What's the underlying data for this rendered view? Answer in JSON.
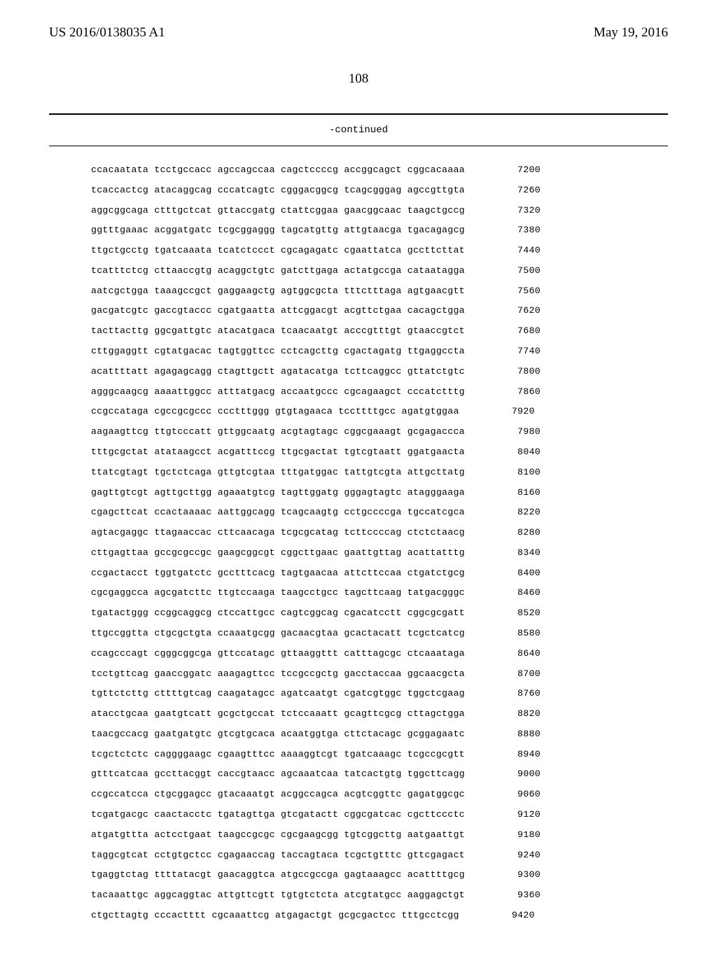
{
  "header": {
    "left": "US 2016/0138035 A1",
    "right": "May 19, 2016"
  },
  "page_number": "108",
  "continued_label": "-continued",
  "start_number": 7200,
  "step": 60,
  "sequence_rows": [
    "ccacaatata tcctgccacc agccagccaa cagctccccg accggcagct cggcacaaaa",
    "tcaccactcg atacaggcag cccatcagtc cgggacggcg tcagcgggag agccgttgta",
    "aggcggcaga ctttgctcat gttaccgatg ctattcggaa gaacggcaac taagctgccg",
    "ggtttgaaac acggatgatc tcgcggaggg tagcatgttg attgtaacga tgacagagcg",
    "ttgctgcctg tgatcaaata tcatctccct cgcagagatc cgaattatca gccttcttat",
    "tcatttctcg cttaaccgtg acaggctgtc gatcttgaga actatgccga cataatagga",
    "aatcgctgga taaagccgct gaggaagctg agtggcgcta tttctttaga agtgaacgtt",
    "gacgatcgtc gaccgtaccc cgatgaatta attcggacgt acgttctgaa cacagctgga",
    "tacttacttg ggcgattgtc atacatgaca tcaacaatgt acccgtttgt gtaaccgtct",
    "cttggaggtt cgtatgacac tagtggttcc cctcagcttg cgactagatg ttgaggccta",
    "acattttatt agagagcagg ctagttgctt agatacatga tcttcaggcc gttatctgtc",
    "agggcaagcg aaaattggcc atttatgacg accaatgccc cgcagaagct cccatctttg",
    "ccgccataga cgccgcgccc ccctttggg gtgtagaaca tccttttgcc agatgtggaa",
    "aagaagttcg ttgtcccatt gttggcaatg acgtagtagc cggcgaaagt gcgagaccca",
    "tttgcgctat atataagcct acgatttccg ttgcgactat tgtcgtaatt ggatgaacta",
    "ttatcgtagt tgctctcaga gttgtcgtaa tttgatggac tattgtcgta attgcttatg",
    "gagttgtcgt agttgcttgg agaaatgtcg tagttggatg gggagtagtc atagggaaga",
    "cgagcttcat ccactaaaac aattggcagg tcagcaagtg cctgccccga tgccatcgca",
    "agtacgaggc ttagaaccac cttcaacaga tcgcgcatag tcttccccag ctctctaacg",
    "cttgagttaa gccgcgccgc gaagcggcgt cggcttgaac gaattgttag acattatttg",
    "ccgactacct tggtgatctc gcctttcacg tagtgaacaa attcttccaa ctgatctgcg",
    "cgcgaggcca agcgatcttc ttgtccaaga taagcctgcc tagcttcaag tatgacgggc",
    "tgatactggg ccggcaggcg ctccattgcc cagtcggcag cgacatcctt cggcgcgatt",
    "ttgccggtta ctgcgctgta ccaaatgcgg gacaacgtaa gcactacatt tcgctcatcg",
    "ccagcccagt cgggcggcga gttccatagc gttaaggttt catttagcgc ctcaaataga",
    "tcctgttcag gaaccggatc aaagagttcc tccgccgctg gacctaccaa ggcaacgcta",
    "tgttctcttg cttttgtcag caagatagcc agatcaatgt cgatcgtggc tggctcgaag",
    "atacctgcaa gaatgtcatt gcgctgccat tctccaaatt gcagttcgcg cttagctgga",
    "taacgccacg gaatgatgtc gtcgtgcaca acaatggtga cttctacagc gcggagaatc",
    "tcgctctctc caggggaagc cgaagtttcc aaaaggtcgt tgatcaaagc tcgccgcgtt",
    "gtttcatcaa gccttacggt caccgtaacc agcaaatcaa tatcactgtg tggcttcagg",
    "ccgccatcca ctgcggagcc gtacaaatgt acggccagca acgtcggttc gagatggcgc",
    "tcgatgacgc caactacctc tgatagttga gtcgatactt cggcgatcac cgcttccctc",
    "atgatgttta actcctgaat taagccgcgc cgcgaagcgg tgtcggcttg aatgaattgt",
    "taggcgtcat cctgtgctcc cgagaaccag taccagtaca tcgctgtttc gttcgagact",
    "tgaggtctag ttttatacgt gaacaggtca atgccgccga gagtaaagcc acattttgcg",
    "tacaaattgc aggcaggtac attgttcgtt tgtgtctcta atcgtatgcc aaggagctgt",
    "ctgcttagtg cccactttt cgcaaattcg atgagactgt gcgcgactcc tttgcctcgg"
  ]
}
